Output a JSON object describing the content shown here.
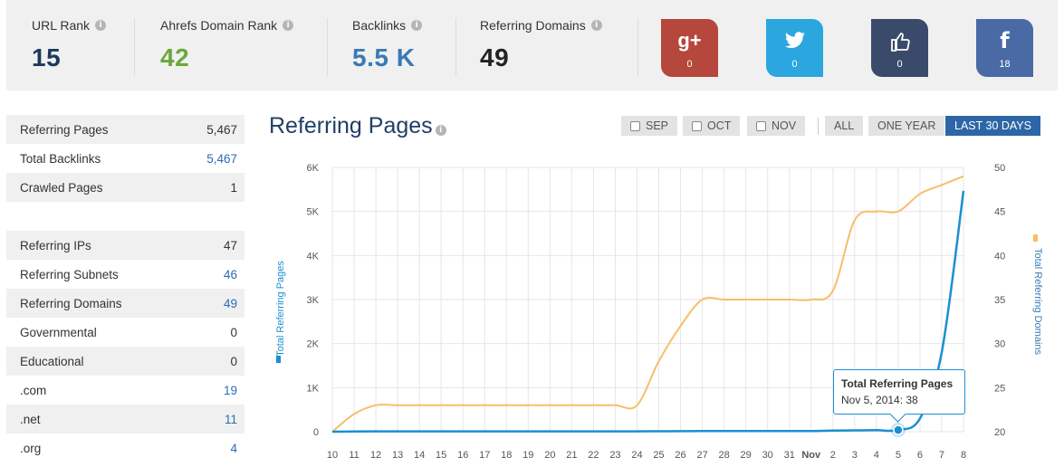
{
  "stats": [
    {
      "label": "URL Rank",
      "value": "15",
      "color": "#1b3a5c"
    },
    {
      "label": "Ahrefs Domain Rank",
      "value": "42",
      "color": "#6aa83a"
    },
    {
      "label": "Backlinks",
      "value": "5.5 K",
      "color": "#3a7ab5"
    },
    {
      "label": "Referring Domains",
      "value": "49",
      "color": "#222222"
    }
  ],
  "info_icon": "i",
  "social": [
    {
      "name": "google-plus",
      "glyph": "g+",
      "count": "0",
      "color": "#b5473c"
    },
    {
      "name": "twitter",
      "glyph": "🐦",
      "count": "0",
      "color": "#2ba6de"
    },
    {
      "name": "like",
      "glyph": "👍",
      "count": "0",
      "color": "#3a4a6b"
    },
    {
      "name": "facebook",
      "glyph": "f",
      "count": "18",
      "color": "#4a6aa5"
    }
  ],
  "metrics": [
    {
      "label": "Referring Pages",
      "value": "5,467",
      "link": false
    },
    {
      "label": "Total Backlinks",
      "value": "5,467",
      "link": true
    },
    {
      "label": "Crawled Pages",
      "value": "1",
      "link": false
    },
    {
      "label": "",
      "value": "",
      "link": false
    },
    {
      "label": "Referring IPs",
      "value": "47",
      "link": false
    },
    {
      "label": "Referring Subnets",
      "value": "46",
      "link": true
    },
    {
      "label": "Referring Domains",
      "value": "49",
      "link": true
    },
    {
      "label": "Governmental",
      "value": "0",
      "link": false
    },
    {
      "label": "Educational",
      "value": "0",
      "link": false
    },
    {
      "label": ".com",
      "value": "19",
      "link": true
    },
    {
      "label": ".net",
      "value": "11",
      "link": true
    },
    {
      "label": ".org",
      "value": "4",
      "link": true
    }
  ],
  "chart_header": {
    "title": "Referring Pages",
    "buttons": [
      {
        "label": "SEP",
        "checkbox": true,
        "active": false
      },
      {
        "label": "OCT",
        "checkbox": true,
        "active": false
      },
      {
        "label": "NOV",
        "checkbox": true,
        "active": false
      },
      {
        "label": "ALL",
        "checkbox": false,
        "active": false
      },
      {
        "label": "ONE YEAR",
        "checkbox": false,
        "active": false
      },
      {
        "label": "LAST 30 DAYS",
        "checkbox": false,
        "active": true
      }
    ]
  },
  "tooltip": {
    "title": "Total Referring Pages",
    "value": "Nov 5, 2014: 38"
  },
  "chart_data": {
    "type": "line",
    "x": [
      "10",
      "11",
      "12",
      "13",
      "14",
      "15",
      "16",
      "17",
      "18",
      "19",
      "20",
      "21",
      "22",
      "23",
      "24",
      "25",
      "26",
      "27",
      "28",
      "29",
      "30",
      "31",
      "Nov",
      "2",
      "3",
      "4",
      "5",
      "6",
      "7",
      "8"
    ],
    "y_left": {
      "label": "Total Referring Pages",
      "ticks": [
        "0",
        "1K",
        "2K",
        "3K",
        "4K",
        "5K",
        "6K"
      ],
      "ylim": [
        0,
        6000
      ]
    },
    "y_right": {
      "label": "Total Referring Domains",
      "ticks": [
        "20",
        "25",
        "30",
        "35",
        "40",
        "45",
        "50"
      ],
      "ylim": [
        20,
        50
      ]
    },
    "series": [
      {
        "name": "Total Referring Pages",
        "axis": "left",
        "color": "#1a8fd2",
        "values": [
          0,
          5,
          8,
          8,
          8,
          8,
          8,
          8,
          8,
          8,
          8,
          8,
          8,
          8,
          8,
          10,
          12,
          15,
          15,
          15,
          15,
          15,
          15,
          25,
          30,
          35,
          38,
          300,
          1800,
          5467
        ]
      },
      {
        "name": "Total Referring Domains",
        "axis": "right",
        "color": "#f7be6a",
        "values": [
          20,
          22,
          23,
          23,
          23,
          23,
          23,
          23,
          23,
          23,
          23,
          23,
          23,
          23,
          23,
          28,
          32,
          35,
          35,
          35,
          35,
          35,
          35,
          36,
          44,
          45,
          45,
          47,
          48,
          49
        ]
      }
    ],
    "highlight": {
      "index": 26,
      "series": 0
    },
    "grid": true
  }
}
